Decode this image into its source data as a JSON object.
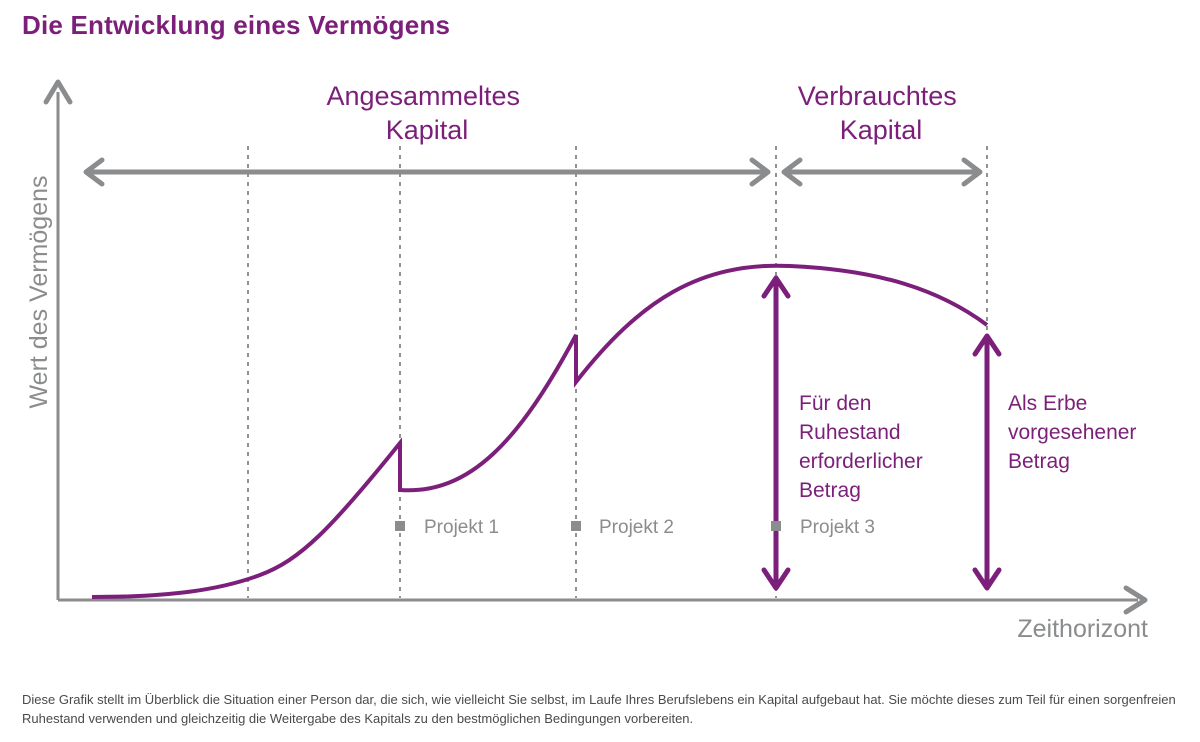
{
  "title": "Die Entwicklung eines Vermögens",
  "axes": {
    "y_label": "Wert des Vermögens",
    "x_label": "Zeithorizont"
  },
  "phases": [
    {
      "lines": [
        "Angesammeltes",
        "Kapital"
      ]
    },
    {
      "lines": [
        "Verbrauchtes",
        "Kapital"
      ]
    }
  ],
  "projects": [
    {
      "label": "Projekt 1"
    },
    {
      "label": "Projekt 2"
    },
    {
      "label": "Projekt 3"
    }
  ],
  "amounts": [
    {
      "lines": [
        "Für den",
        "Ruhestand",
        "erforderlicher",
        "Betrag"
      ]
    },
    {
      "lines": [
        "Als Erbe",
        "vorgesehener",
        "Betrag"
      ]
    }
  ],
  "caption": "Diese Grafik stellt im Überblick die Situation einer Person dar, die sich, wie vielleicht Sie selbst, im Laufe Ihres Berufslebens ein Kapital aufgebaut hat. Sie möchte dieses zum Teil für einen sorgenfreien Ruhestand verwenden und gleichzeitig die Weitergabe des Kapitals zu den bestmöglichen Bedingungen vorbereiten.",
  "colors": {
    "accent": "#7b1f7a",
    "axis": "#8a8c8e",
    "label_gray": "#8a8c8e",
    "text": "#4a4a4a"
  }
}
